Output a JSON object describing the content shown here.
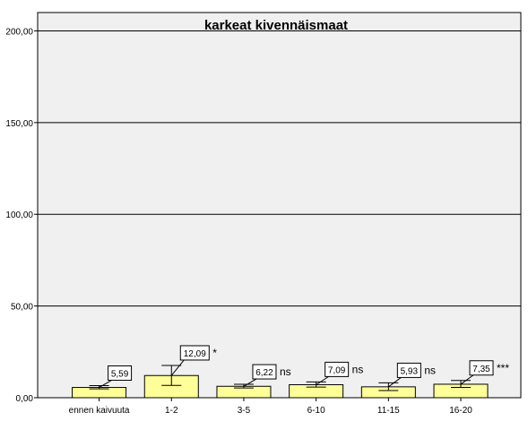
{
  "chart_data": {
    "type": "bar",
    "title": "karkeat kivennäismaat",
    "xlabel": "",
    "ylabel": "",
    "ylim": [
      0,
      210
    ],
    "yticks": [
      "0,00",
      "50,00",
      "100,00",
      "150,00",
      "200,00"
    ],
    "ytick_values": [
      0,
      50,
      100,
      150,
      200
    ],
    "grid": true,
    "categories": [
      "ennen kaivuuta",
      "1-2",
      "3-5",
      "6-10",
      "11-15",
      "16-20"
    ],
    "values": [
      5.59,
      12.09,
      6.22,
      7.09,
      5.93,
      7.35
    ],
    "value_labels": [
      "5,59",
      "12,09",
      "6,22",
      "7,09",
      "5,93",
      "7,35"
    ],
    "error_low": [
      4.8,
      6.7,
      5.3,
      5.8,
      3.9,
      5.6
    ],
    "error_high": [
      6.6,
      17.6,
      7.3,
      8.6,
      8.1,
      9.4
    ],
    "significance": [
      "",
      "*",
      "ns",
      "ns",
      "ns",
      "***"
    ],
    "colors": {
      "bar": "#ffff99",
      "grid": "#000000",
      "background": "#f0f0f0"
    }
  }
}
